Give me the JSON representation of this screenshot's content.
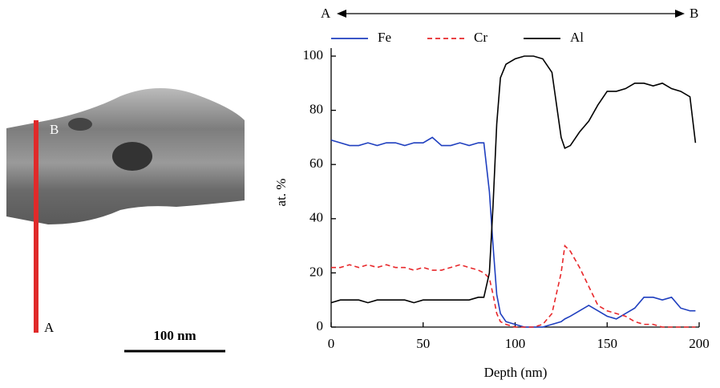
{
  "chart_data": {
    "type": "line",
    "top_labels": {
      "start": "A",
      "end": "B"
    },
    "image_labels": {
      "top": "B",
      "bottom": "A",
      "scale_bar": "100 nm"
    },
    "xlabel": "Depth (nm)",
    "ylabel": "at. %",
    "xlim": [
      0,
      200
    ],
    "xticks": [
      0,
      50,
      100,
      150,
      200
    ],
    "ylim": [
      0,
      100
    ],
    "yticks": [
      0,
      20,
      40,
      60,
      80,
      100
    ],
    "x": [
      0,
      5,
      10,
      15,
      20,
      25,
      30,
      35,
      40,
      45,
      50,
      55,
      60,
      65,
      70,
      75,
      80,
      83,
      86,
      88,
      90,
      92,
      95,
      100,
      105,
      110,
      115,
      120,
      125,
      127,
      130,
      135,
      140,
      145,
      150,
      155,
      160,
      165,
      170,
      175,
      180,
      185,
      190,
      195,
      198
    ],
    "series": [
      {
        "name": "Fe",
        "color": "#1f3fbf",
        "dashed": false,
        "values": [
          69,
          68,
          67,
          67,
          68,
          67,
          68,
          68,
          67,
          68,
          68,
          70,
          67,
          67,
          68,
          67,
          68,
          68,
          50,
          30,
          12,
          5,
          2,
          1,
          0,
          0,
          0,
          1,
          2,
          3,
          4,
          6,
          8,
          6,
          4,
          3,
          5,
          7,
          11,
          11,
          10,
          11,
          7,
          6,
          6
        ]
      },
      {
        "name": "Cr",
        "color": "#e8282b",
        "dashed": true,
        "values": [
          22,
          22,
          23,
          22,
          23,
          22,
          23,
          22,
          22,
          21,
          22,
          21,
          21,
          22,
          23,
          22,
          21,
          20,
          18,
          12,
          5,
          2,
          1,
          0,
          0,
          0,
          1,
          5,
          20,
          30,
          28,
          22,
          15,
          8,
          6,
          5,
          4,
          2,
          1,
          1,
          0,
          0,
          0,
          0,
          0
        ]
      },
      {
        "name": "Al",
        "color": "#000000",
        "dashed": false,
        "values": [
          9,
          10,
          10,
          10,
          9,
          10,
          10,
          10,
          10,
          9,
          10,
          10,
          10,
          10,
          10,
          10,
          11,
          11,
          20,
          45,
          75,
          92,
          97,
          99,
          100,
          100,
          99,
          94,
          70,
          66,
          67,
          72,
          76,
          82,
          87,
          87,
          88,
          90,
          90,
          89,
          90,
          88,
          87,
          85,
          68
        ]
      }
    ]
  }
}
